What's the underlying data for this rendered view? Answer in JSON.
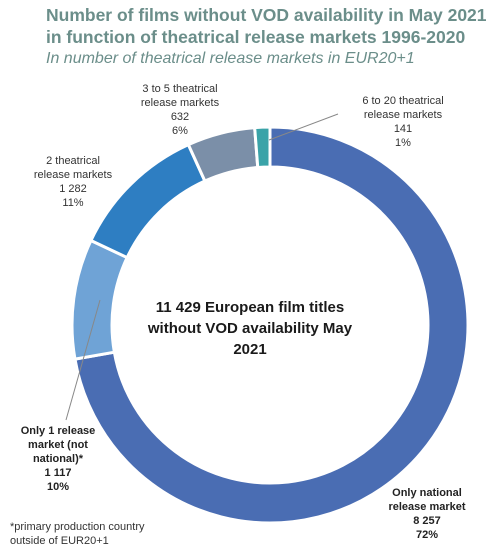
{
  "title": {
    "line1": "Number of films without VOD availability in May 2021",
    "line2": "in function of theatrical release markets 1996-2020",
    "subtitle": "In number of theatrical release markets in EUR20+1"
  },
  "center": {
    "line1": "11 429 European film titles",
    "line2": "without VOD availability May 2021"
  },
  "footnote": {
    "line1": "*primary production country",
    "line2": "outside of EUR20+1"
  },
  "colors": {
    "only_national": "#4a6db3",
    "only_one": "#6fa3d6",
    "two": "#2e7ec2",
    "three_to_five": "#7b8fa8",
    "six_to_twenty": "#3aa3a8",
    "title": "#6b8e8a"
  },
  "chart_data": {
    "type": "pie",
    "title": "Number of films without VOD availability in May 2021 in function of theatrical release markets 1996-2020",
    "subtitle": "In number of theatrical release markets in EUR20+1",
    "total": 11429,
    "slices": [
      {
        "label": "Only national release market",
        "value": 8257,
        "percent": "72%",
        "value_text": "8 257",
        "color": "#4a6db3"
      },
      {
        "label": "Only 1 release market (not national)*",
        "value": 1117,
        "percent": "10%",
        "value_text": "1 117",
        "color": "#6fa3d6"
      },
      {
        "label": "2 theatrical release markets",
        "value": 1282,
        "percent": "11%",
        "value_text": "1 282",
        "color": "#2e7ec2"
      },
      {
        "label": "3 to 5 theatrical release markets",
        "value": 632,
        "percent": "6%",
        "value_text": "632",
        "color": "#7b8fa8"
      },
      {
        "label": "6 to 20 theatrical release markets",
        "value": 141,
        "percent": "1%",
        "value_text": "141",
        "color": "#3aa3a8"
      }
    ],
    "labels": {
      "only_national": {
        "line1": "Only national",
        "line2": "release market",
        "value": "8 257",
        "percent": "72%"
      },
      "only_one": {
        "line1": "Only 1 release",
        "line2": "market (not",
        "line3": "national)*",
        "value": "1 117",
        "percent": "10%"
      },
      "two": {
        "line1": "2 theatrical",
        "line2": "release markets",
        "value": "1 282",
        "percent": "11%"
      },
      "three_to_five": {
        "line1": "3 to 5 theatrical",
        "line2": "release markets",
        "value": "632",
        "percent": "6%"
      },
      "six_to_twenty": {
        "line1": "6 to 20 theatrical",
        "line2": "release markets",
        "value": "141",
        "percent": "1%"
      }
    }
  }
}
